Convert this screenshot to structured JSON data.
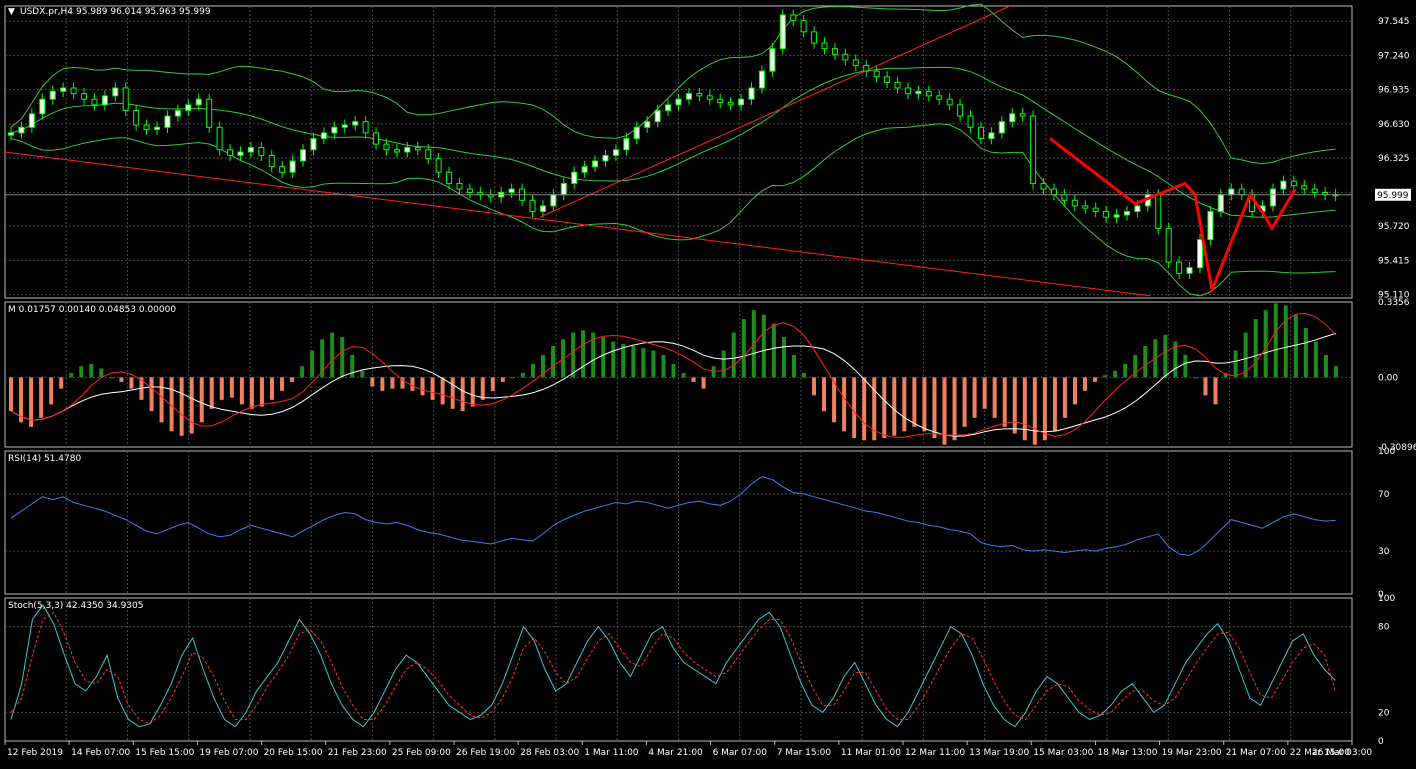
{
  "main_panel": {
    "symbol": "USDX.pr,H4",
    "ohlc": "95.989 96.014 95.963 95.999",
    "axis_ticks": [
      "97.545",
      "97.240",
      "96.935",
      "96.630",
      "96.325",
      "96.020",
      "95.720",
      "95.415",
      "95.110"
    ],
    "ylim": [
      95.08,
      97.68
    ],
    "current_price": "95.999"
  },
  "momentum_panel": {
    "label": "M 0.01757 0.00140 0.04853 0.00000",
    "axis_ticks": [
      "0.3356",
      "0.00",
      "-0.30896"
    ],
    "ylim": [
      -0.31,
      0.336
    ]
  },
  "rsi_panel": {
    "label": "RSI(14) 51.4780",
    "axis_ticks": [
      "100",
      "70",
      "30",
      "0"
    ],
    "ylim": [
      0,
      100
    ]
  },
  "stoch_panel": {
    "label": "Stoch(5,3,3) 42.4350 34.9305",
    "axis_ticks": [
      "100",
      "80",
      "20",
      "0"
    ],
    "ylim": [
      0,
      100
    ]
  },
  "time_axis": [
    "12 Feb 2019",
    "14 Feb 07:00",
    "15 Feb 15:00",
    "19 Feb 07:00",
    "20 Feb 15:00",
    "21 Feb 23:00",
    "25 Feb 09:00",
    "26 Feb 19:00",
    "28 Feb 03:00",
    "1 Mar 11:00",
    "4 Mar 21:00",
    "6 Mar 07:00",
    "7 Mar 15:00",
    "11 Mar 01:00",
    "12 Mar 11:00",
    "13 Mar 19:00",
    "15 Mar 03:00",
    "18 Mar 13:00",
    "19 Mar 23:00",
    "21 Mar 07:00",
    "22 Mar 15:00",
    "26 Mar 03:00"
  ],
  "colors": {
    "background": "#000000",
    "grid": "#4a4a4a",
    "bull_candle": "#ffffff",
    "bear_candle": "#000000",
    "candle_wick": "#00ff00",
    "bollinger": "#33cc33",
    "trendline": "#ff2020",
    "arrows": "#ff0000",
    "mom_pos": "#1e8c1e",
    "mom_neg": "#f08060",
    "mom_line_white": "#ffffff",
    "mom_line_red": "#ff2020",
    "rsi": "#3a7ff0",
    "stoch_main": "#40c8c8",
    "stoch_signal": "#ff3030",
    "text": "#ffffff"
  },
  "chart_data": [
    {
      "type": "candlestick",
      "series": [
        {
          "name": "Price",
          "values": [
            96.55,
            96.6,
            96.72,
            96.85,
            96.92,
            96.95,
            96.9,
            96.85,
            96.8,
            96.88,
            96.95,
            96.75,
            96.62,
            96.58,
            96.6,
            96.7,
            96.75,
            96.8,
            96.85,
            96.6,
            96.4,
            96.35,
            96.38,
            96.42,
            96.35,
            96.25,
            96.2,
            96.3,
            96.4,
            96.5,
            96.55,
            96.6,
            96.62,
            96.65,
            96.55,
            96.45,
            96.4,
            96.38,
            96.42,
            96.4,
            96.32,
            96.2,
            96.1,
            96.05,
            96.02,
            96.0,
            95.98,
            96.02,
            96.05,
            95.95,
            95.85,
            95.9,
            96.0,
            96.1,
            96.2,
            96.25,
            96.3,
            96.35,
            96.4,
            96.5,
            96.6,
            96.65,
            96.75,
            96.8,
            96.85,
            96.9,
            96.88,
            96.85,
            96.82,
            96.8,
            96.85,
            96.95,
            97.1,
            97.3,
            97.6,
            97.55,
            97.45,
            97.35,
            97.3,
            97.25,
            97.2,
            97.15,
            97.1,
            97.05,
            97.0,
            96.95,
            96.9,
            96.92,
            96.88,
            96.85,
            96.8,
            96.7,
            96.6,
            96.5,
            96.55,
            96.65,
            96.72,
            96.7,
            96.1,
            96.05,
            96.0,
            95.95,
            95.9,
            95.88,
            95.85,
            95.8,
            95.82,
            95.85,
            95.9,
            96.0,
            95.7,
            95.4,
            95.3,
            95.35,
            95.6,
            95.85,
            96.0,
            96.05,
            96.0,
            95.85,
            95.9,
            96.05,
            96.12,
            96.08,
            96.05,
            96.02,
            96.0,
            95.99
          ]
        },
        {
          "name": "Bollinger",
          "values": []
        }
      ],
      "ylim": [
        95.08,
        97.68
      ]
    },
    {
      "type": "bar",
      "series": [
        {
          "name": "M",
          "values": [
            -0.15,
            -0.2,
            -0.22,
            -0.18,
            -0.12,
            -0.05,
            0.02,
            0.05,
            0.06,
            0.04,
            0.0,
            -0.02,
            -0.05,
            -0.1,
            -0.15,
            -0.2,
            -0.24,
            -0.26,
            -0.25,
            -0.2,
            -0.14,
            -0.1,
            -0.09,
            -0.12,
            -0.14,
            -0.13,
            -0.1,
            -0.06,
            -0.02,
            0.05,
            0.12,
            0.17,
            0.2,
            0.18,
            0.1,
            0.03,
            -0.04,
            -0.06,
            -0.05,
            -0.05,
            -0.06,
            -0.08,
            -0.1,
            -0.12,
            -0.14,
            -0.15,
            -0.13,
            -0.1,
            -0.06,
            -0.02,
            0.0,
            0.02,
            0.06,
            0.1,
            0.14,
            0.17,
            0.2,
            0.21,
            0.2,
            0.18,
            0.16,
            0.15,
            0.14,
            0.13,
            0.12,
            0.1,
            0.06,
            0.02,
            -0.02,
            -0.05,
            0.05,
            0.12,
            0.2,
            0.26,
            0.3,
            0.28,
            0.24,
            0.18,
            0.1,
            0.02,
            -0.08,
            -0.15,
            -0.2,
            -0.24,
            -0.27,
            -0.28,
            -0.28,
            -0.27,
            -0.26,
            -0.24,
            -0.22,
            -0.24,
            -0.27,
            -0.3,
            -0.28,
            -0.22,
            -0.18,
            -0.14,
            -0.18,
            -0.22,
            -0.25,
            -0.28,
            -0.3,
            -0.28,
            -0.24,
            -0.18,
            -0.12,
            -0.06,
            -0.02,
            0.01,
            0.03,
            0.06,
            0.1,
            0.14,
            0.17,
            0.19,
            0.16,
            0.1,
            0.0,
            -0.08,
            -0.12,
            0.02,
            0.12,
            0.2,
            0.26,
            0.3,
            0.33,
            0.32,
            0.28,
            0.22,
            0.16,
            0.1,
            0.05
          ]
        }
      ],
      "ylim": [
        -0.31,
        0.336
      ]
    },
    {
      "type": "line",
      "series": [
        {
          "name": "RSI(14)",
          "values": [
            53,
            58,
            63,
            68,
            66,
            68,
            64,
            62,
            60,
            58,
            55,
            52,
            48,
            44,
            42,
            45,
            48,
            50,
            46,
            42,
            40,
            41,
            45,
            48,
            46,
            44,
            42,
            40,
            44,
            48,
            52,
            55,
            57,
            56,
            52,
            50,
            49,
            50,
            48,
            45,
            43,
            42,
            40,
            38,
            37,
            36,
            35,
            37,
            39,
            38,
            37,
            42,
            48,
            52,
            55,
            58,
            60,
            62,
            64,
            63,
            65,
            64,
            62,
            60,
            62,
            64,
            65,
            63,
            62,
            65,
            70,
            77,
            82,
            80,
            75,
            71,
            70,
            68,
            66,
            64,
            62,
            60,
            58,
            57,
            55,
            53,
            51,
            50,
            48,
            47,
            45,
            44,
            42,
            36,
            34,
            33,
            34,
            31,
            30,
            31,
            30,
            29,
            30,
            31,
            30,
            32,
            33,
            35,
            38,
            40,
            42,
            33,
            28,
            27,
            31,
            38,
            45,
            52,
            50,
            48,
            46,
            50,
            54,
            56,
            54,
            52,
            51,
            51.48
          ]
        }
      ],
      "ylim": [
        0,
        100
      ]
    },
    {
      "type": "line",
      "series": [
        {
          "name": "Stoch main",
          "values": [
            15,
            40,
            85,
            95,
            82,
            60,
            40,
            35,
            45,
            60,
            30,
            15,
            10,
            12,
            25,
            40,
            60,
            72,
            50,
            30,
            15,
            10,
            20,
            35,
            45,
            55,
            70,
            85,
            75,
            60,
            40,
            25,
            15,
            10,
            20,
            35,
            50,
            60,
            55,
            45,
            35,
            25,
            20,
            15,
            18,
            25,
            40,
            60,
            80,
            70,
            50,
            35,
            40,
            55,
            70,
            80,
            70,
            55,
            45,
            60,
            75,
            80,
            65,
            55,
            50,
            45,
            40,
            55,
            65,
            75,
            85,
            90,
            80,
            60,
            40,
            25,
            20,
            30,
            45,
            55,
            40,
            25,
            15,
            10,
            20,
            35,
            50,
            65,
            80,
            75,
            60,
            40,
            25,
            15,
            10,
            20,
            35,
            45,
            40,
            30,
            20,
            15,
            18,
            25,
            35,
            40,
            30,
            20,
            25,
            40,
            55,
            65,
            75,
            82,
            70,
            50,
            30,
            25,
            40,
            55,
            70,
            75,
            60,
            50,
            42.4
          ]
        },
        {
          "name": "Stoch signal",
          "values": [
            20,
            30,
            60,
            85,
            90,
            75,
            55,
            42,
            40,
            50,
            45,
            25,
            15,
            12,
            18,
            30,
            45,
            62,
            58,
            45,
            28,
            15,
            15,
            25,
            38,
            48,
            60,
            75,
            78,
            70,
            55,
            38,
            25,
            15,
            15,
            25,
            38,
            50,
            55,
            50,
            42,
            32,
            25,
            18,
            16,
            20,
            30,
            45,
            65,
            72,
            62,
            48,
            40,
            45,
            58,
            70,
            75,
            65,
            55,
            52,
            65,
            75,
            72,
            62,
            55,
            50,
            45,
            48,
            58,
            68,
            78,
            85,
            85,
            72,
            55,
            38,
            25,
            25,
            35,
            48,
            48,
            35,
            22,
            15,
            15,
            25,
            38,
            52,
            65,
            75,
            72,
            58,
            42,
            28,
            18,
            15,
            25,
            35,
            40,
            38,
            28,
            22,
            18,
            20,
            28,
            35,
            35,
            28,
            25,
            30,
            42,
            55,
            65,
            75,
            76,
            65,
            48,
            32,
            30,
            42,
            55,
            65,
            68,
            60,
            34.9
          ]
        }
      ],
      "ylim": [
        0,
        100
      ]
    }
  ]
}
